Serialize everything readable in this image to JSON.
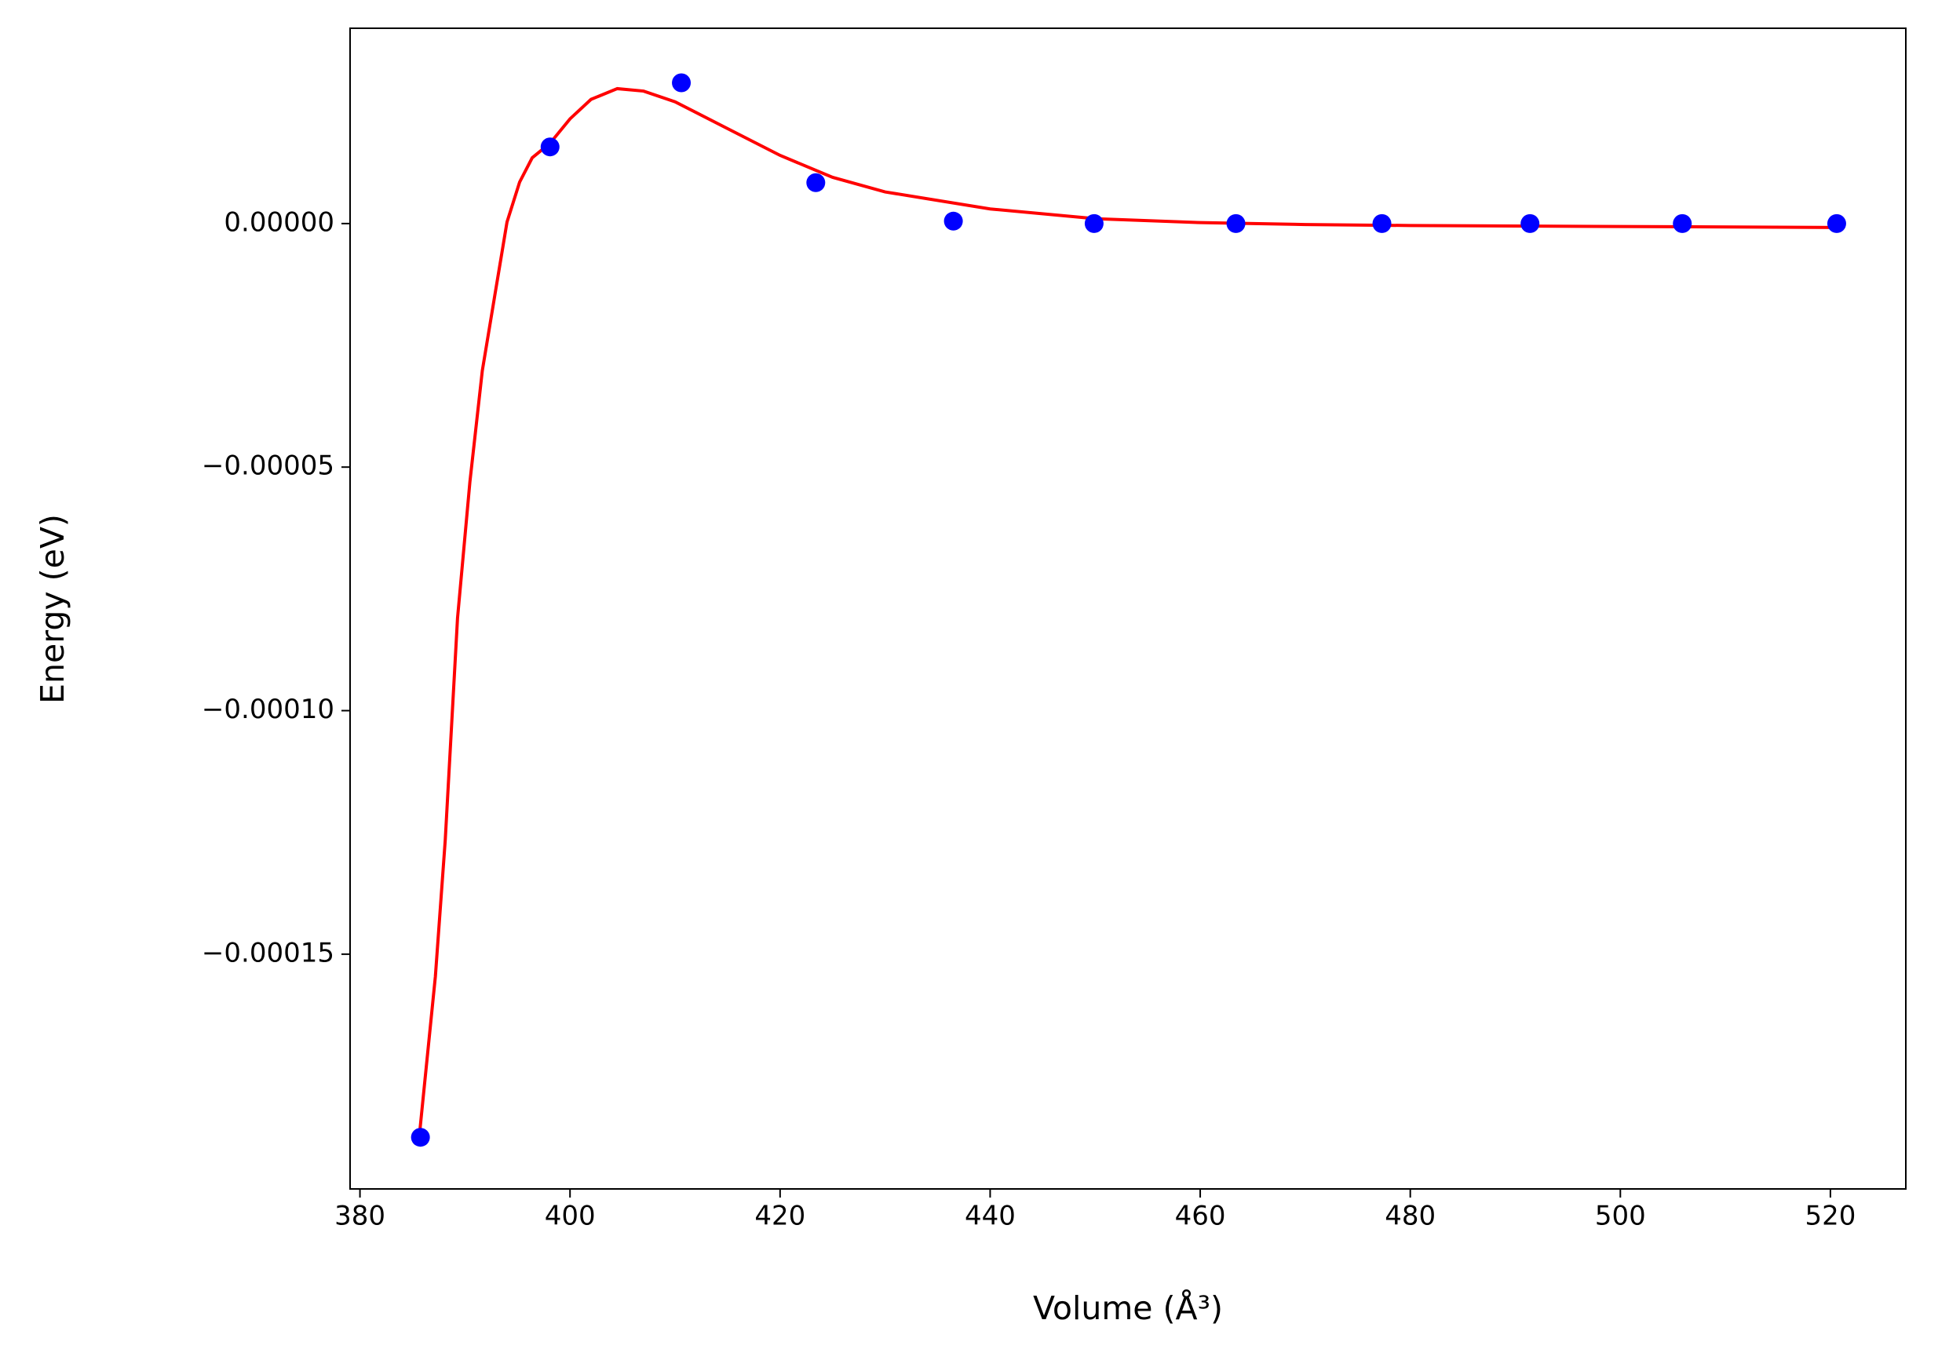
{
  "chart_data": {
    "type": "scatter",
    "xlabel": "Volume (Å³)",
    "ylabel": "Energy (eV)",
    "xlim": [
      379.06,
      527.18
    ],
    "ylim": [
      -0.0001982,
      4.01e-05
    ],
    "xticks": [
      380,
      400,
      420,
      440,
      460,
      480,
      500,
      520
    ],
    "yticks": [
      {
        "value": 0,
        "label": "0.00000"
      },
      {
        "value": -5e-05,
        "label": "−0.00005"
      },
      {
        "value": -0.0001,
        "label": "−0.00010"
      },
      {
        "value": -0.00015,
        "label": "−0.00015"
      }
    ],
    "grid": false,
    "series": [
      {
        "kind": "line",
        "color": "#ff0000",
        "x": [
          385.7,
          387.18,
          388.12,
          389.29,
          390.47,
          391.65,
          392.82,
          394.0,
          395.2,
          396.4,
          398.1,
          400,
          402,
          404.5,
          407,
          410,
          415,
          420,
          425,
          430,
          440,
          450,
          460,
          470,
          480,
          500,
          520.6
        ],
        "values": [
          -0.0001863,
          -0.0001546,
          -0.0001266,
          -8.1e-05,
          -5.3e-05,
          -3.02e-05,
          -1.5e-05,
          3e-07,
          8.5e-06,
          1.35e-05,
          1.65e-05,
          2.15e-05,
          2.55e-05,
          2.77e-05,
          2.72e-05,
          2.5e-05,
          1.95e-05,
          1.4e-05,
          9.5e-06,
          6.5e-06,
          3e-06,
          1e-06,
          2e-07,
          -2e-07,
          -4e-07,
          -6e-07,
          -8e-07
        ]
      },
      {
        "kind": "markers",
        "color": "#0000ff",
        "x": [
          385.76,
          398.1,
          410.6,
          423.4,
          436.5,
          449.9,
          463.4,
          477.3,
          491.4,
          505.9,
          520.6
        ],
        "values": [
          -0.0001876,
          1.574e-05,
          2.89e-05,
          8.4e-06,
          5e-07,
          0,
          0,
          0,
          0,
          0,
          0
        ]
      }
    ]
  }
}
